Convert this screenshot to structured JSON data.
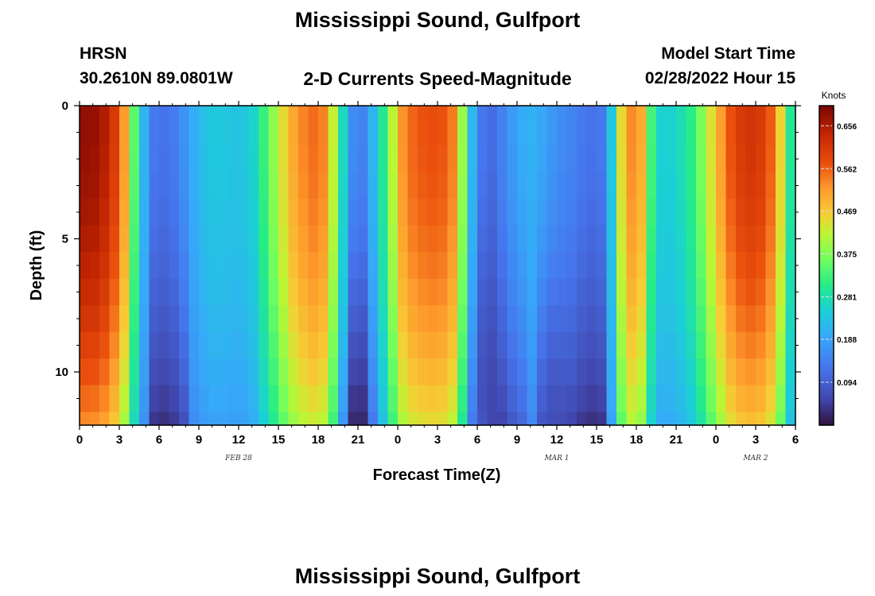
{
  "page": {
    "title": "Mississippi Sound, Gulfport",
    "station_code": "HRSN",
    "station_coords": "30.2610N  89.0801W",
    "subtitle": "2-D Currents Speed-Magnitude",
    "model_start_label": "Model Start Time",
    "model_start_value": "02/28/2022 Hour 15",
    "footer_title": "Mississippi Sound, Gulfport"
  },
  "chart_data": {
    "type": "heatmap",
    "title": "Mississippi Sound, Gulfport",
    "subtitle": "2-D Currents Speed-Magnitude",
    "xlabel": "Forecast Time(Z)",
    "ylabel": "Depth (ft)",
    "x_unit": "hours from 2022-02-28 00Z",
    "xlim": [
      0,
      54
    ],
    "ylim": [
      12,
      0
    ],
    "x_ticks": [
      0,
      3,
      6,
      9,
      12,
      15,
      18,
      21,
      24,
      27,
      30,
      33,
      36,
      39,
      42,
      45,
      48,
      51,
      54
    ],
    "x_tick_labels": [
      "0",
      "3",
      "6",
      "9",
      "12",
      "15",
      "18",
      "21",
      "0",
      "3",
      "6",
      "9",
      "12",
      "15",
      "18",
      "21",
      "0",
      "3",
      "6"
    ],
    "y_ticks": [
      0,
      5,
      10
    ],
    "y_tick_labels": [
      "0",
      "5",
      "10"
    ],
    "date_labels": [
      {
        "text": "FEB 28",
        "x": 12
      },
      {
        "text": "MAR 1",
        "x": 36
      },
      {
        "text": "MAR 2",
        "x": 51
      }
    ],
    "colorbar": {
      "title": "Knots",
      "min": 0.0,
      "max": 0.7,
      "ticks": [
        0.094,
        0.188,
        0.281,
        0.375,
        0.469,
        0.562,
        0.656
      ],
      "tick_labels": [
        "0.094",
        "0.188",
        "0.281",
        "0.375",
        "0.469",
        "0.562",
        "0.656"
      ]
    },
    "speed_profile": [
      [
        0.0,
        0.68
      ],
      [
        1.0,
        0.68
      ],
      [
        2.0,
        0.65
      ],
      [
        3.0,
        0.58
      ],
      [
        3.6,
        0.48
      ],
      [
        4.0,
        0.38
      ],
      [
        4.3,
        0.3
      ],
      [
        4.7,
        0.24
      ],
      [
        5.3,
        0.14
      ],
      [
        6.0,
        0.12
      ],
      [
        7.0,
        0.13
      ],
      [
        8.0,
        0.17
      ],
      [
        9.0,
        0.22
      ],
      [
        10.0,
        0.24
      ],
      [
        11.0,
        0.24
      ],
      [
        12.0,
        0.23
      ],
      [
        13.0,
        0.25
      ],
      [
        14.0,
        0.33
      ],
      [
        15.0,
        0.42
      ],
      [
        16.0,
        0.5
      ],
      [
        17.0,
        0.54
      ],
      [
        18.0,
        0.56
      ],
      [
        18.8,
        0.51
      ],
      [
        19.3,
        0.38
      ],
      [
        19.8,
        0.28
      ],
      [
        20.5,
        0.17
      ],
      [
        21.0,
        0.12
      ],
      [
        21.7,
        0.17
      ],
      [
        22.5,
        0.25
      ],
      [
        23.2,
        0.34
      ],
      [
        23.8,
        0.45
      ],
      [
        24.5,
        0.54
      ],
      [
        25.5,
        0.57
      ],
      [
        27.0,
        0.58
      ],
      [
        28.0,
        0.56
      ],
      [
        28.6,
        0.47
      ],
      [
        29.0,
        0.36
      ],
      [
        29.5,
        0.24
      ],
      [
        30.0,
        0.14
      ],
      [
        31.0,
        0.11
      ],
      [
        32.0,
        0.15
      ],
      [
        33.0,
        0.19
      ],
      [
        34.0,
        0.21
      ],
      [
        35.0,
        0.19
      ],
      [
        36.0,
        0.16
      ],
      [
        37.0,
        0.15
      ],
      [
        38.0,
        0.13
      ],
      [
        39.0,
        0.12
      ],
      [
        39.7,
        0.14
      ],
      [
        40.0,
        0.2
      ],
      [
        40.5,
        0.36
      ],
      [
        41.0,
        0.48
      ],
      [
        42.0,
        0.56
      ],
      [
        42.5,
        0.48
      ],
      [
        43.0,
        0.35
      ],
      [
        43.5,
        0.27
      ],
      [
        44.0,
        0.25
      ],
      [
        45.0,
        0.26
      ],
      [
        46.0,
        0.3
      ],
      [
        47.0,
        0.38
      ],
      [
        48.0,
        0.48
      ],
      [
        49.0,
        0.57
      ],
      [
        50.0,
        0.61
      ],
      [
        51.0,
        0.62
      ],
      [
        52.0,
        0.58
      ],
      [
        52.7,
        0.5
      ],
      [
        53.2,
        0.38
      ],
      [
        53.6,
        0.3
      ],
      [
        54.0,
        0.26
      ]
    ],
    "depth_levels_ft": [
      0,
      1,
      2,
      3,
      4,
      5,
      6,
      7,
      8,
      9,
      10,
      11,
      12
    ],
    "bottom_dark_cores": [
      {
        "x": 21.0,
        "depth_ft": 12,
        "speed": 0.02
      },
      {
        "x": 30.5,
        "depth_ft": 12,
        "speed": 0.08
      },
      {
        "x": 35.5,
        "depth_ft": 12,
        "speed": 0.07
      }
    ]
  }
}
